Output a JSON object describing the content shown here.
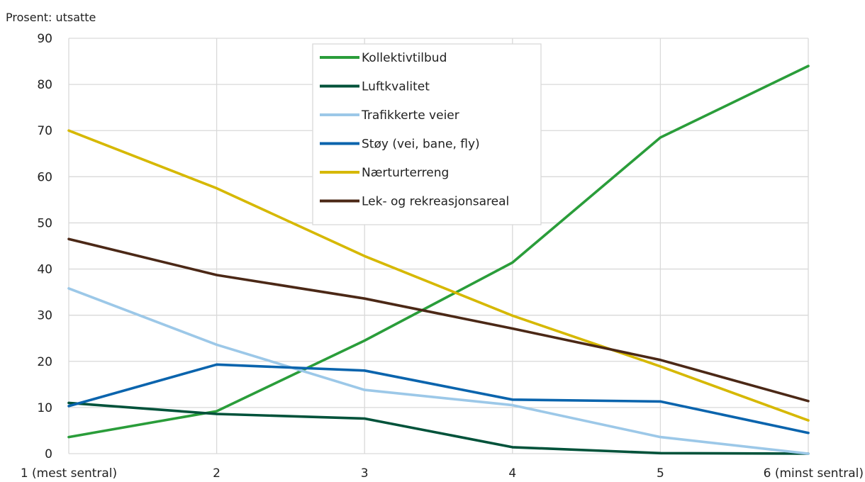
{
  "chart_data": {
    "type": "line",
    "ylabel": "Prosent: utsatte",
    "categories": [
      "1 (mest sentral)",
      "2",
      "3",
      "4",
      "5",
      "6 (minst sentral)"
    ],
    "ylim": [
      0,
      90
    ],
    "yticks": [
      0,
      10,
      20,
      30,
      40,
      50,
      60,
      70,
      80,
      90
    ],
    "grid": true,
    "legend_position": "top-center",
    "series": [
      {
        "name": "Kollektivtilbud",
        "color": "#2a9d3a",
        "values": [
          3.6,
          9.2,
          24.5,
          41.4,
          68.5,
          84.0
        ]
      },
      {
        "name": "Luftkvalitet",
        "color": "#00523a",
        "values": [
          11.0,
          8.6,
          7.6,
          1.4,
          0.1,
          0.0
        ]
      },
      {
        "name": "Trafikkerte veier",
        "color": "#9cc8e8",
        "values": [
          35.8,
          23.6,
          13.8,
          10.5,
          3.6,
          0.0
        ]
      },
      {
        "name": "Støy (vei, bane, fly)",
        "color": "#0a64ad",
        "values": [
          10.3,
          19.3,
          18.0,
          11.7,
          11.3,
          4.5
        ]
      },
      {
        "name": "Nærturterreng",
        "color": "#d6b800",
        "values": [
          70.0,
          57.5,
          42.8,
          29.9,
          18.9,
          7.2
        ]
      },
      {
        "name": "Lek- og rekreasjonsareal",
        "color": "#4b2816",
        "values": [
          46.5,
          38.7,
          33.6,
          27.1,
          20.3,
          11.4
        ]
      }
    ]
  }
}
